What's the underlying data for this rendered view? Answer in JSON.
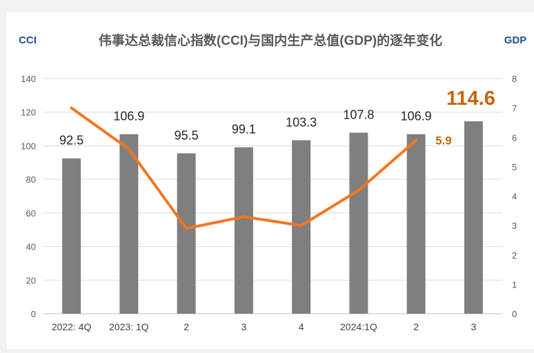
{
  "chart_data": {
    "type": "bar",
    "title": "伟事达总裁信心指数(CCI)与国内生产总值(GDP)的逐年变化",
    "categories": [
      "2022: 4Q",
      "2023: 1Q",
      "2",
      "3",
      "4",
      "2024:1Q",
      "2",
      "3"
    ],
    "left_axis": {
      "label": "CCI",
      "ticks": [
        0,
        20,
        40,
        60,
        80,
        100,
        120,
        140
      ],
      "ylim": [
        0,
        140
      ]
    },
    "right_axis": {
      "label": "GDP",
      "ticks": [
        0,
        1,
        2,
        3,
        4,
        5,
        6,
        7,
        8
      ],
      "ylim": [
        0,
        8
      ]
    },
    "series": [
      {
        "name": "CCI",
        "type": "bar",
        "axis": "left",
        "values": [
          92.5,
          106.9,
          95.5,
          99.1,
          103.3,
          107.8,
          106.9,
          114.6
        ],
        "labels": [
          "92.5",
          "106.9",
          "95.5",
          "99.1",
          "103.3",
          "107.8",
          "106.9",
          "114.6"
        ],
        "color": "#7f7f7f"
      },
      {
        "name": "GDP",
        "type": "line",
        "axis": "right",
        "values": [
          7.0,
          5.6,
          2.9,
          3.3,
          3.0,
          4.2,
          5.9,
          null
        ],
        "labels": [
          "",
          "",
          "",
          "",
          "",
          "",
          "5.9",
          ""
        ],
        "color": "#f4761f"
      }
    ],
    "highlight": {
      "label_color": "#c9620f",
      "axis_label_color": "#1f4e8c"
    },
    "grid": true,
    "legend": "none"
  }
}
